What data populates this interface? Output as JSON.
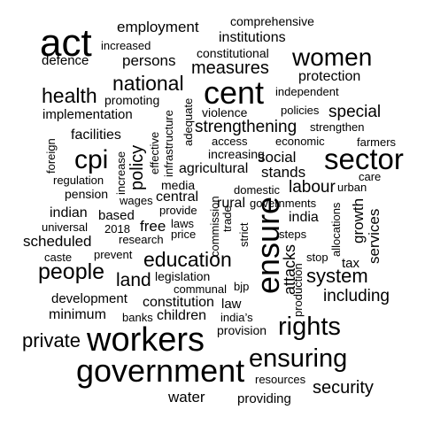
{
  "words": {
    "act": "act",
    "employment": "employment",
    "comprehensive": "comprehensive",
    "increased": "increased",
    "constitutional": "constitutional",
    "institutions": "institutions",
    "defence": "defence",
    "persons": "persons",
    "women": "women",
    "measures": "measures",
    "protection": "protection",
    "national": "national",
    "cent": "cent",
    "independent": "independent",
    "health": "health",
    "promoting": "promoting",
    "adequate": "adequate",
    "violence": "violence",
    "policies": "policies",
    "special": "special",
    "implementation": "implementation",
    "strengthening": "strengthening",
    "strengthen": "strengthen",
    "facilities": "facilities",
    "access": "access",
    "economic": "economic",
    "farmers": "farmers",
    "foreign": "foreign",
    "infrastructure": "infrastructure",
    "effective": "effective",
    "increasing": "increasing",
    "cpi": "cpi",
    "increase": "increase",
    "policy": "policy",
    "social": "social",
    "sector": "sector",
    "regulation": "regulation",
    "agricultural": "agricultural",
    "stands": "stands",
    "care": "care",
    "media": "media",
    "pension": "pension",
    "central": "central",
    "domestic": "domestic",
    "labour": "labour",
    "urban": "urban",
    "wages": "wages",
    "rural": "rural",
    "governments": "governments",
    "indian": "indian",
    "provide": "provide",
    "india": "india",
    "based": "based",
    "commission": "commission",
    "trade": "trade",
    "universal": "universal",
    "free": "free",
    "laws": "laws",
    "ensure": "ensure",
    "growth": "growth",
    "2018": "2018",
    "steps": "steps",
    "allocations": "allocations",
    "scheduled": "scheduled",
    "research": "research",
    "price": "price",
    "strict": "strict",
    "services": "services",
    "caste": "caste",
    "prevent": "prevent",
    "education": "education",
    "attacks": "attacks",
    "stop": "stop",
    "people": "people",
    "tax": "tax",
    "land": "land",
    "legislation": "legislation",
    "system": "system",
    "communal": "communal",
    "bjp": "bjp",
    "production": "production",
    "development": "development",
    "constitution": "constitution",
    "law": "law",
    "including": "including",
    "minimum": "minimum",
    "banks": "banks",
    "children": "children",
    "india_s": "india’s",
    "provision": "provision",
    "rights": "rights",
    "private": "private",
    "workers": "workers",
    "ensuring": "ensuring",
    "government": "government",
    "resources": "resources",
    "security": "security",
    "water": "water",
    "providing": "providing"
  },
  "colors": {
    "text": "#000000",
    "background": "#ffffff"
  }
}
